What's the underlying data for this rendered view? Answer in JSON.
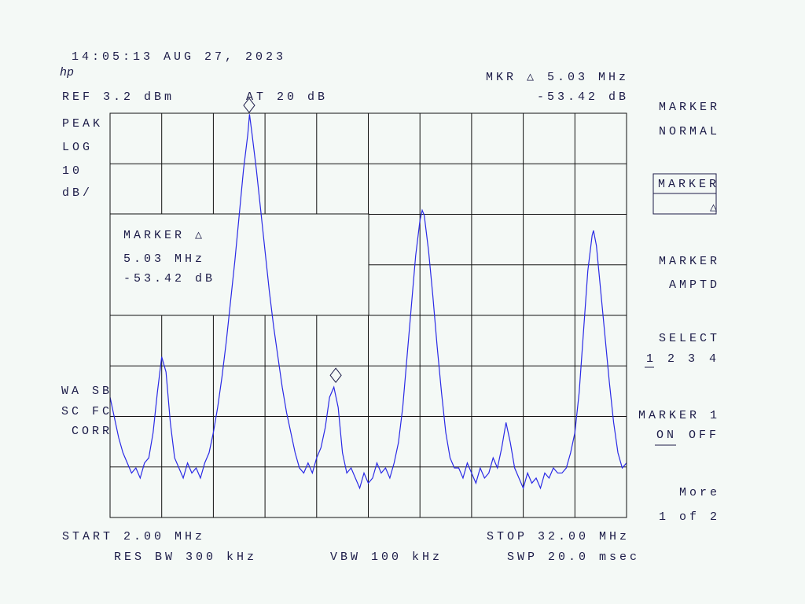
{
  "screen": {
    "timestamp": "14:05:13 AUG 27, 2023",
    "logo": "hp",
    "ref_level": "REF 3.2 dBm",
    "attenuation": "AT 20 dB",
    "marker_readout": "MKR △ 5.03 MHz",
    "marker_readout_value": "-53.42 dB",
    "scale": [
      "PEAK",
      "LOG",
      "10",
      "dB/"
    ],
    "marker_box": [
      "MARKER △",
      "5.03 MHz",
      "-53.42 dB"
    ],
    "status": [
      "WA SB",
      "SC FC",
      "CORR"
    ],
    "start": "START 2.00 MHz",
    "stop": "STOP 32.00 MHz",
    "res_bw": "RES BW 300 kHz",
    "vbw": "VBW 100 kHz",
    "sweep": "SWP 20.0 msec",
    "softkeys": {
      "marker_normal": [
        "MARKER",
        "NORMAL"
      ],
      "marker_delta": [
        "MARKER",
        "△"
      ],
      "marker_amptd": [
        "MARKER",
        "AMPTD"
      ],
      "select": "SELECT",
      "select_options": [
        "1",
        "2",
        "3",
        "4"
      ],
      "marker_1": "MARKER 1",
      "on": "ON",
      "off": "OFF",
      "more": [
        "More",
        "1 of 2"
      ]
    }
  },
  "chart_data": {
    "type": "line",
    "x": [
      2,
      2.25,
      2.5,
      2.75,
      3,
      3.25,
      3.5,
      3.75,
      4,
      4.25,
      4.5,
      4.75,
      5,
      5.25,
      5.5,
      5.75,
      6,
      6.25,
      6.5,
      6.75,
      7,
      7.25,
      7.5,
      7.75,
      8,
      8.25,
      8.5,
      8.75,
      9,
      9.25,
      9.5,
      9.75,
      10,
      10.1,
      10.25,
      10.5,
      10.75,
      11,
      11.25,
      11.5,
      11.75,
      12,
      12.25,
      12.5,
      12.75,
      13,
      13.25,
      13.5,
      13.75,
      14,
      14.25,
      14.5,
      14.75,
      15,
      15.25,
      15.5,
      15.75,
      16,
      16.25,
      16.5,
      16.75,
      17,
      17.25,
      17.5,
      17.75,
      18,
      18.25,
      18.5,
      18.75,
      19,
      19.25,
      19.5,
      19.75,
      20,
      20.13,
      20.25,
      20.5,
      20.75,
      21,
      21.25,
      21.5,
      21.75,
      22,
      22.25,
      22.5,
      22.75,
      23,
      23.25,
      23.5,
      23.75,
      24,
      24.25,
      24.5,
      24.75,
      25,
      25.25,
      25.5,
      25.75,
      26,
      26.25,
      26.5,
      26.75,
      27,
      27.25,
      27.5,
      27.75,
      28,
      28.25,
      28.5,
      28.75,
      29,
      29.25,
      29.5,
      29.75,
      30,
      30.08,
      30.25,
      30.5,
      30.75,
      31,
      31.25,
      31.5,
      31.75,
      32
    ],
    "values": [
      -53,
      -57,
      -61,
      -64,
      -66,
      -68,
      -67,
      -69,
      -66,
      -65,
      -60,
      -52,
      -45,
      -48,
      -58,
      -65,
      -67,
      -69,
      -66,
      -68,
      -67,
      -69,
      -66,
      -64,
      -60,
      -55,
      -49,
      -42,
      -34,
      -26,
      -17,
      -8,
      -1,
      3,
      -1,
      -8,
      -16,
      -24,
      -32,
      -39,
      -45,
      -51,
      -56,
      -60,
      -64,
      -67,
      -68,
      -66,
      -68,
      -65,
      -63,
      -59,
      -53,
      -51,
      -55,
      -64,
      -68,
      -67,
      -69,
      -71,
      -68,
      -70,
      -69,
      -66,
      -68,
      -67,
      -69,
      -66,
      -62,
      -55,
      -45,
      -35,
      -25,
      -18,
      -16,
      -17,
      -24,
      -33,
      -43,
      -52,
      -60,
      -65,
      -67,
      -67,
      -69,
      -66,
      -68,
      -70,
      -67,
      -69,
      -68,
      -65,
      -67,
      -63,
      -58,
      -62,
      -67,
      -69,
      -71,
      -68,
      -70,
      -69,
      -71,
      -68,
      -69,
      -67,
      -68,
      -68,
      -67,
      -64,
      -60,
      -52,
      -40,
      -28,
      -21,
      -20,
      -23,
      -32,
      -41,
      -50,
      -58,
      -64,
      -67,
      -66
    ],
    "color": "#2a2ae6",
    "xlim": [
      2,
      32
    ],
    "ylim": [
      -76.8,
      3.2
    ],
    "xticks": [
      2,
      5,
      8,
      11,
      14,
      17,
      20,
      23,
      26,
      29,
      32
    ],
    "yticks": [
      -76.8,
      -66.8,
      -56.8,
      -46.8,
      -36.8,
      -26.8,
      -16.8,
      -6.8,
      3.2
    ],
    "grid": true,
    "markers": [
      {
        "x": 10.08,
        "y": 3.2
      },
      {
        "x": 15.11,
        "y": -50.22
      }
    ]
  }
}
